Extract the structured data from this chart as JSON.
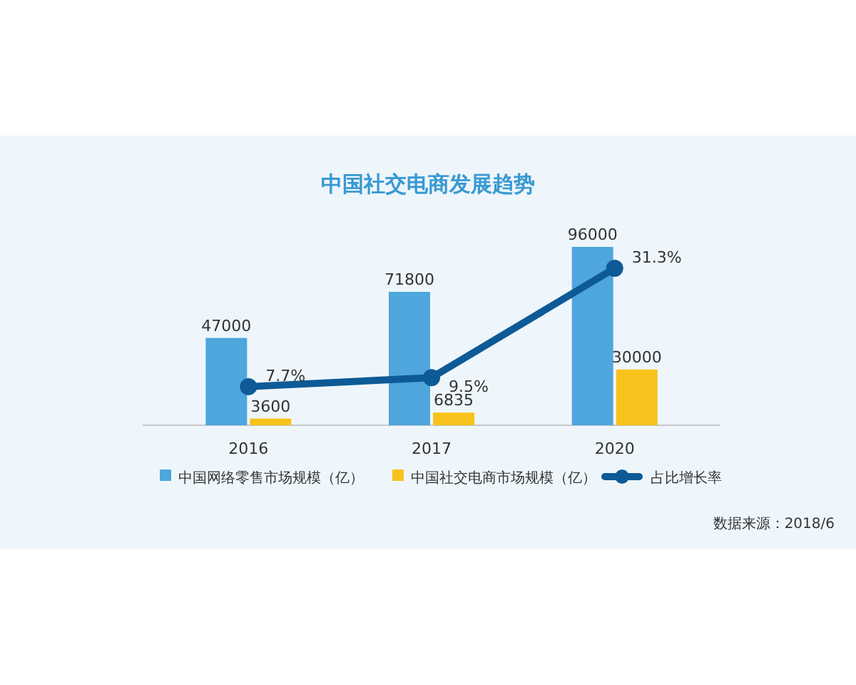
{
  "chart_data": {
    "type": "bar",
    "title": "中国社交电商发展趋势",
    "categories": [
      "2016",
      "2017",
      "2020"
    ],
    "series": [
      {
        "name": "中国网络零售市场规模（亿）",
        "color": "#4ea6dc",
        "values": [
          47000,
          71800,
          96000
        ]
      },
      {
        "name": "中国社交电商市场规模（亿）",
        "color": "#f7c21b",
        "values": [
          3600,
          6835,
          30000
        ]
      },
      {
        "name": "占比增长率",
        "type": "line",
        "axis": "y2",
        "color": "#0d5a96",
        "values": [
          7.7,
          9.5,
          31.3
        ],
        "value_labels": [
          "7.7%",
          "9.5%",
          "31.3%"
        ]
      }
    ],
    "tick_labels": "x",
    "data_labels": true,
    "legend": "bottom",
    "marker": "circle",
    "annotations": [
      "数据来源：2018/6"
    ]
  }
}
